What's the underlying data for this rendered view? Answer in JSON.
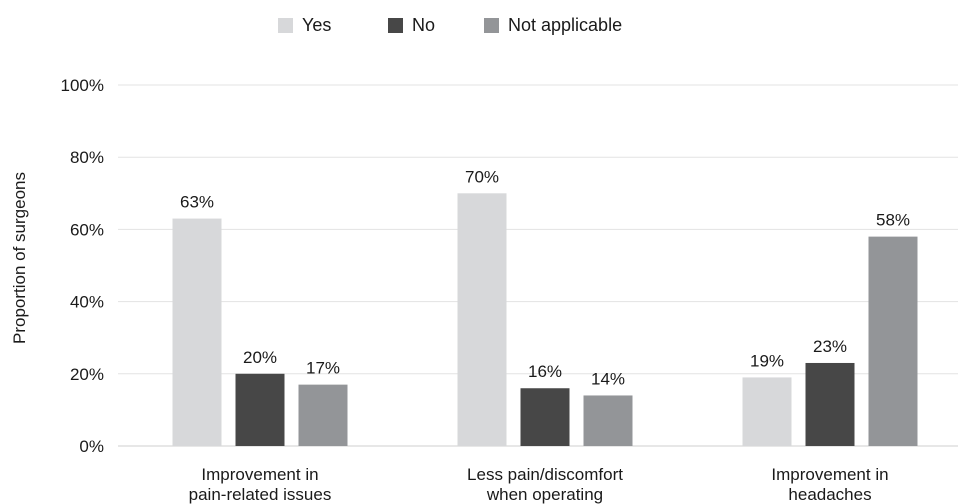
{
  "chart_data": {
    "type": "bar",
    "categories": [
      [
        "Improvement in",
        "pain-related issues"
      ],
      [
        "Less pain/discomfort",
        "when operating"
      ],
      [
        "Improvement in",
        "headaches"
      ]
    ],
    "series": [
      {
        "name": "Yes",
        "color": "#d7d8da",
        "values": [
          63,
          70,
          19
        ]
      },
      {
        "name": "No",
        "color": "#474747",
        "values": [
          20,
          16,
          23
        ]
      },
      {
        "name": "Not applicable",
        "color": "#939598",
        "values": [
          17,
          14,
          58
        ]
      }
    ],
    "data_labels": [
      [
        "63%",
        "20%",
        "17%"
      ],
      [
        "70%",
        "16%",
        "14%"
      ],
      [
        "19%",
        "23%",
        "58%"
      ]
    ],
    "ylabel": "Proportion of surgeons",
    "yticks": [
      0,
      20,
      40,
      60,
      80,
      100
    ],
    "ytick_labels": [
      "0%",
      "20%",
      "40%",
      "60%",
      "80%",
      "100%"
    ],
    "ylim": [
      0,
      100
    ],
    "grid": true,
    "legend_position": "top-center"
  }
}
